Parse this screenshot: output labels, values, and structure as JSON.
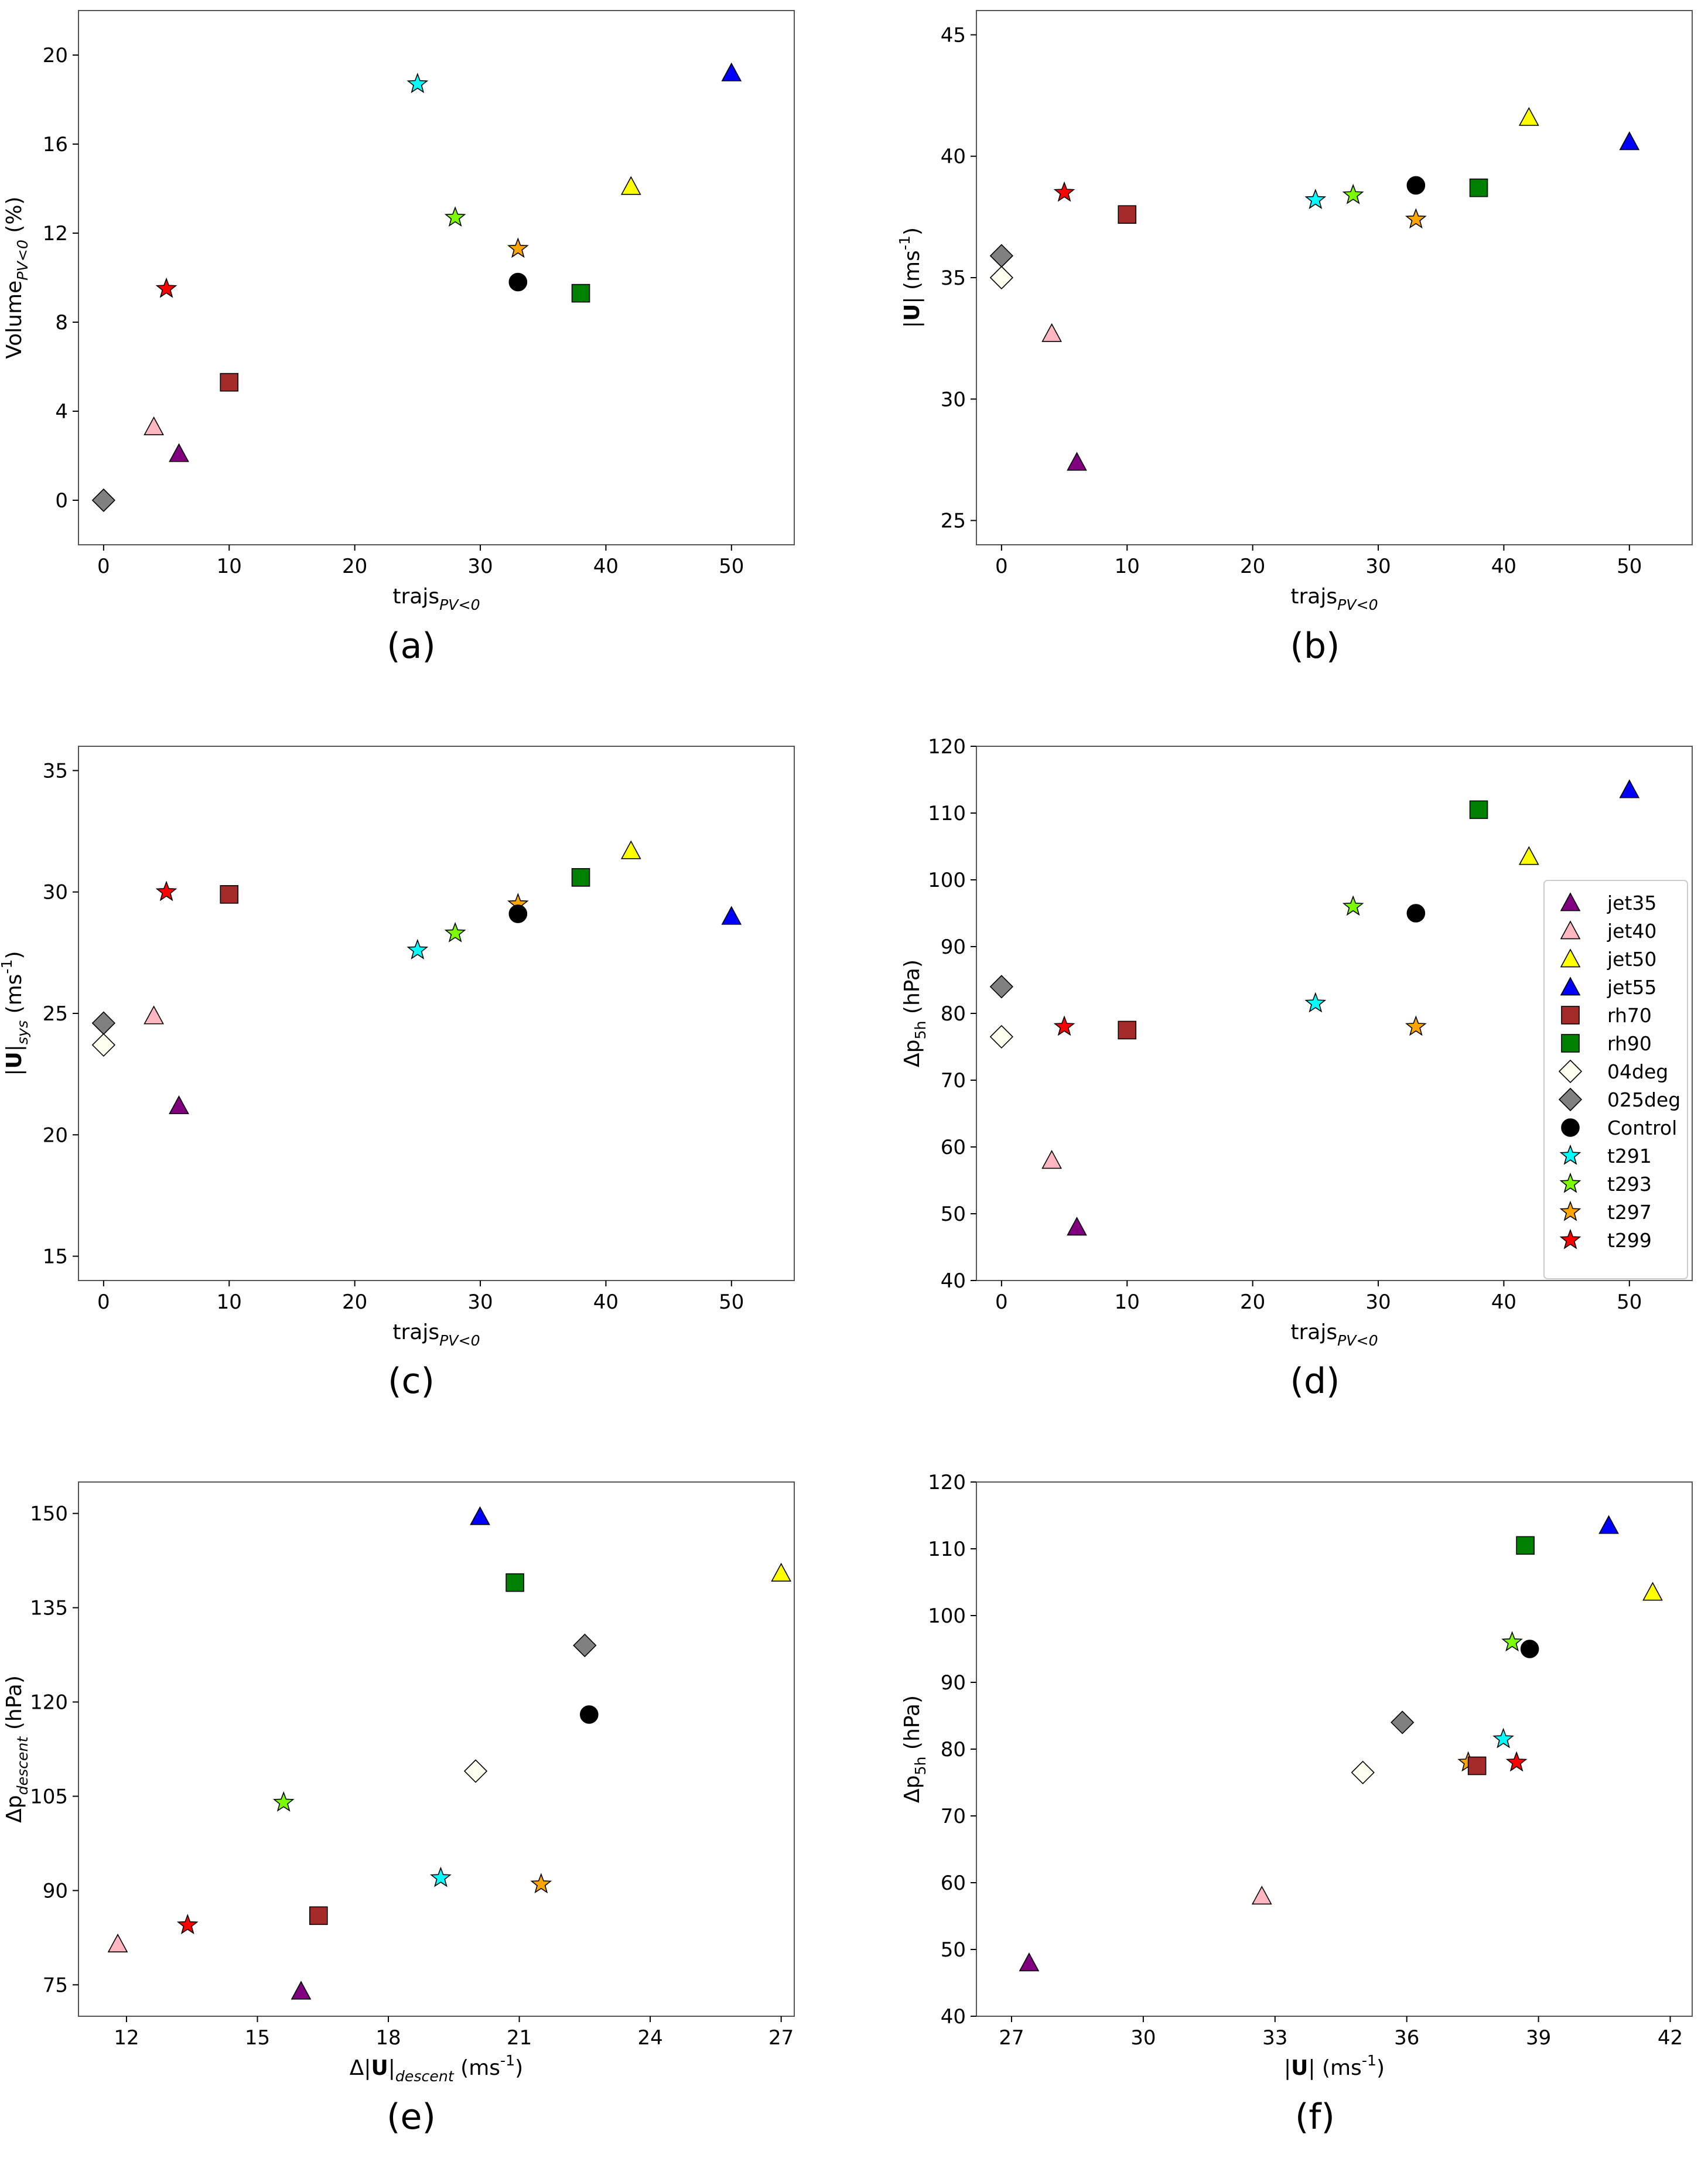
{
  "marker_styles": {
    "jet35": {
      "shape": "triangle",
      "color": "#800080"
    },
    "jet40": {
      "shape": "triangle",
      "color": "#ffb6c1"
    },
    "jet50": {
      "shape": "triangle",
      "color": "#ffff00"
    },
    "jet55": {
      "shape": "triangle",
      "color": "#0000ff"
    },
    "rh70": {
      "shape": "square",
      "color": "#a52a2a"
    },
    "rh90": {
      "shape": "square",
      "color": "#008000"
    },
    "04deg": {
      "shape": "diamond",
      "color": "#fffff0"
    },
    "025deg": {
      "shape": "diamond",
      "color": "#808080"
    },
    "Control": {
      "shape": "circle",
      "color": "#000000"
    },
    "t291": {
      "shape": "star",
      "color": "#00ffff"
    },
    "t293": {
      "shape": "star",
      "color": "#7cfc00"
    },
    "t297": {
      "shape": "star",
      "color": "#ffa500"
    },
    "t299": {
      "shape": "star",
      "color": "#ff0000"
    }
  },
  "chart_data": [
    {
      "type": "scatter",
      "caption": "(a)",
      "xlabel": "trajs_{PV<0}",
      "ylabel": "Volume_{PV<0} (%)",
      "xlim": [
        -2,
        55
      ],
      "ylim": [
        -2,
        22
      ],
      "xticks": [
        0,
        10,
        20,
        30,
        40,
        50
      ],
      "yticks": [
        0,
        4,
        8,
        12,
        16,
        20
      ],
      "points": [
        {
          "series": "025deg",
          "x": 0,
          "y": 0
        },
        {
          "series": "jet40",
          "x": 4,
          "y": 3.3
        },
        {
          "series": "t299",
          "x": 5,
          "y": 9.5
        },
        {
          "series": "jet35",
          "x": 6,
          "y": 2.1
        },
        {
          "series": "rh70",
          "x": 10,
          "y": 5.3
        },
        {
          "series": "t291",
          "x": 25,
          "y": 18.7
        },
        {
          "series": "t293",
          "x": 28,
          "y": 12.7
        },
        {
          "series": "t297",
          "x": 33,
          "y": 11.3
        },
        {
          "series": "Control",
          "x": 33,
          "y": 9.8
        },
        {
          "series": "rh90",
          "x": 38,
          "y": 9.3
        },
        {
          "series": "jet50",
          "x": 42,
          "y": 14.1
        },
        {
          "series": "jet55",
          "x": 50,
          "y": 19.2
        }
      ]
    },
    {
      "type": "scatter",
      "caption": "(b)",
      "xlabel": "trajs_{PV<0}",
      "ylabel": "|U| (ms^{-1})",
      "xlim": [
        -2,
        55
      ],
      "ylim": [
        24,
        46
      ],
      "xticks": [
        0,
        10,
        20,
        30,
        40,
        50
      ],
      "yticks": [
        25,
        30,
        35,
        40,
        45
      ],
      "points": [
        {
          "series": "025deg",
          "x": 0,
          "y": 35.9
        },
        {
          "series": "04deg",
          "x": 0,
          "y": 35.0
        },
        {
          "series": "jet40",
          "x": 4,
          "y": 32.7
        },
        {
          "series": "t299",
          "x": 5,
          "y": 38.5
        },
        {
          "series": "jet35",
          "x": 6,
          "y": 27.4
        },
        {
          "series": "rh70",
          "x": 10,
          "y": 37.6
        },
        {
          "series": "t291",
          "x": 25,
          "y": 38.2
        },
        {
          "series": "t293",
          "x": 28,
          "y": 38.4
        },
        {
          "series": "t297",
          "x": 33,
          "y": 37.4
        },
        {
          "series": "Control",
          "x": 33,
          "y": 38.8
        },
        {
          "series": "rh90",
          "x": 38,
          "y": 38.7
        },
        {
          "series": "jet50",
          "x": 42,
          "y": 41.6
        },
        {
          "series": "jet55",
          "x": 50,
          "y": 40.6
        }
      ]
    },
    {
      "type": "scatter",
      "caption": "(c)",
      "xlabel": "trajs_{PV<0}",
      "ylabel": "|U|_{sys} (ms^{-1})",
      "xlim": [
        -2,
        55
      ],
      "ylim": [
        14,
        36
      ],
      "xticks": [
        0,
        10,
        20,
        30,
        40,
        50
      ],
      "yticks": [
        15,
        20,
        25,
        30,
        35
      ],
      "points": [
        {
          "series": "025deg",
          "x": 0,
          "y": 24.6
        },
        {
          "series": "04deg",
          "x": 0,
          "y": 23.7
        },
        {
          "series": "jet40",
          "x": 4,
          "y": 24.9
        },
        {
          "series": "t299",
          "x": 5,
          "y": 30.0
        },
        {
          "series": "jet35",
          "x": 6,
          "y": 21.2
        },
        {
          "series": "rh70",
          "x": 10,
          "y": 29.9
        },
        {
          "series": "t291",
          "x": 25,
          "y": 27.6
        },
        {
          "series": "t293",
          "x": 28,
          "y": 28.3
        },
        {
          "series": "t297",
          "x": 33,
          "y": 29.5
        },
        {
          "series": "Control",
          "x": 33,
          "y": 29.1
        },
        {
          "series": "rh90",
          "x": 38,
          "y": 30.6
        },
        {
          "series": "jet50",
          "x": 42,
          "y": 31.7
        },
        {
          "series": "jet55",
          "x": 50,
          "y": 29.0
        }
      ]
    },
    {
      "type": "scatter",
      "caption": "(d)",
      "xlabel": "trajs_{PV<0}",
      "ylabel": "Δp_{5h} (hPa)",
      "xlim": [
        -2,
        55
      ],
      "ylim": [
        40,
        120
      ],
      "xticks": [
        0,
        10,
        20,
        30,
        40,
        50
      ],
      "yticks": [
        40,
        50,
        60,
        70,
        80,
        90,
        100,
        110,
        120
      ],
      "legend": {
        "location": "center-right",
        "entries": [
          "jet35",
          "jet40",
          "jet50",
          "jet55",
          "rh70",
          "rh90",
          "04deg",
          "025deg",
          "Control",
          "t291",
          "t293",
          "t297",
          "t299"
        ]
      },
      "points": [
        {
          "series": "025deg",
          "x": 0,
          "y": 84.0
        },
        {
          "series": "04deg",
          "x": 0,
          "y": 76.5
        },
        {
          "series": "jet40",
          "x": 4,
          "y": 58.0
        },
        {
          "series": "t299",
          "x": 5,
          "y": 78.0
        },
        {
          "series": "jet35",
          "x": 6,
          "y": 48.0
        },
        {
          "series": "rh70",
          "x": 10,
          "y": 77.5
        },
        {
          "series": "t291",
          "x": 25,
          "y": 81.5
        },
        {
          "series": "t293",
          "x": 28,
          "y": 96.0
        },
        {
          "series": "t297",
          "x": 33,
          "y": 78.0
        },
        {
          "series": "Control",
          "x": 33,
          "y": 95.0
        },
        {
          "series": "rh90",
          "x": 38,
          "y": 110.5
        },
        {
          "series": "jet50",
          "x": 42,
          "y": 103.5
        },
        {
          "series": "jet55",
          "x": 50,
          "y": 113.5
        }
      ]
    },
    {
      "type": "scatter",
      "caption": "(e)",
      "xlabel": "Δ|U|_{descent} (ms^{-1})",
      "ylabel": "Δp_{descent} (hPa)",
      "xlim": [
        10.9,
        27.3
      ],
      "ylim": [
        70,
        155
      ],
      "xticks": [
        12,
        15,
        18,
        21,
        24,
        27
      ],
      "yticks": [
        75,
        90,
        105,
        120,
        135,
        150
      ],
      "points": [
        {
          "series": "jet40",
          "x": 11.8,
          "y": 81.5
        },
        {
          "series": "t299",
          "x": 13.4,
          "y": 84.5
        },
        {
          "series": "t293",
          "x": 15.6,
          "y": 104.0
        },
        {
          "series": "jet35",
          "x": 16.0,
          "y": 74.0
        },
        {
          "series": "rh70",
          "x": 16.4,
          "y": 86.0
        },
        {
          "series": "t291",
          "x": 19.2,
          "y": 92.0
        },
        {
          "series": "04deg",
          "x": 20.0,
          "y": 109.0
        },
        {
          "series": "jet55",
          "x": 20.1,
          "y": 149.5
        },
        {
          "series": "rh90",
          "x": 20.9,
          "y": 139.0
        },
        {
          "series": "t297",
          "x": 21.5,
          "y": 91.0
        },
        {
          "series": "025deg",
          "x": 22.5,
          "y": 129.0
        },
        {
          "series": "Control",
          "x": 22.6,
          "y": 118.0
        },
        {
          "series": "jet50",
          "x": 27.0,
          "y": 140.5
        }
      ]
    },
    {
      "type": "scatter",
      "caption": "(f)",
      "xlabel": "|U| (ms^{-1})",
      "ylabel": "Δp_{5h} (hPa)",
      "xlim": [
        26.2,
        42.5
      ],
      "ylim": [
        40,
        120
      ],
      "xticks": [
        27,
        30,
        33,
        36,
        39,
        42
      ],
      "yticks": [
        40,
        50,
        60,
        70,
        80,
        90,
        100,
        110,
        120
      ],
      "points": [
        {
          "series": "jet35",
          "x": 27.4,
          "y": 48.0
        },
        {
          "series": "jet40",
          "x": 32.7,
          "y": 58.0
        },
        {
          "series": "04deg",
          "x": 35.0,
          "y": 76.5
        },
        {
          "series": "025deg",
          "x": 35.9,
          "y": 84.0
        },
        {
          "series": "t297",
          "x": 37.4,
          "y": 78.0
        },
        {
          "series": "rh70",
          "x": 37.6,
          "y": 77.5
        },
        {
          "series": "t291",
          "x": 38.2,
          "y": 81.5
        },
        {
          "series": "t293",
          "x": 38.4,
          "y": 96.0
        },
        {
          "series": "t299",
          "x": 38.5,
          "y": 78.0
        },
        {
          "series": "rh90",
          "x": 38.7,
          "y": 110.5
        },
        {
          "series": "Control",
          "x": 38.8,
          "y": 95.0
        },
        {
          "series": "jet55",
          "x": 40.6,
          "y": 113.5
        },
        {
          "series": "jet50",
          "x": 41.6,
          "y": 103.5
        }
      ]
    }
  ]
}
